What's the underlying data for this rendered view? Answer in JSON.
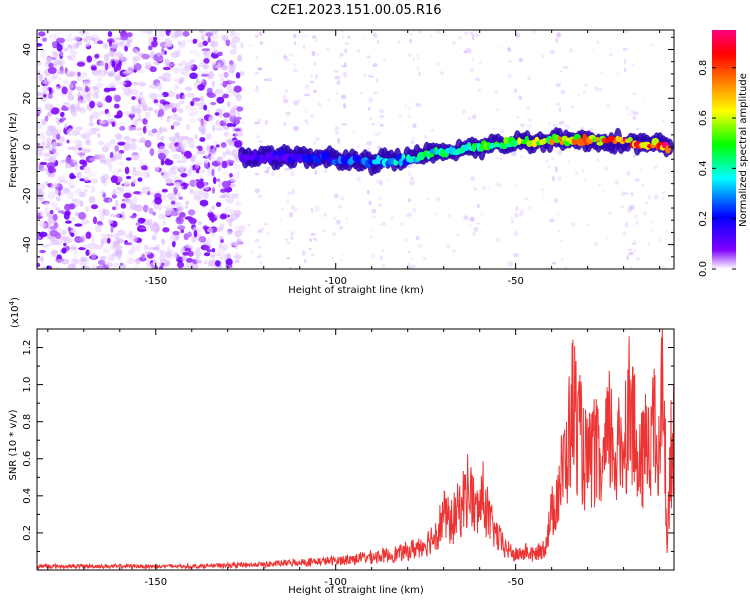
{
  "page_title": "C2E1.2023.151.00.05.R16",
  "colors": {
    "snr_line": "#ee3333",
    "scatter_low": "#dcc8f5",
    "scatter_mid": "#8a2be2",
    "band_core": "#00d0ff",
    "frame": "#000000"
  },
  "chart_data": [
    {
      "type": "heatmap",
      "title": "C2E1.2023.151.00.05.R16",
      "xlabel": "Height of straight line (km)",
      "ylabel": "Frequency (Hz)",
      "xlim": [
        -183,
        -6
      ],
      "ylim": [
        -50,
        48
      ],
      "x_ticks": [
        -150,
        -100,
        -50
      ],
      "x_tick_labels": [
        "-150",
        "-100",
        "-50"
      ],
      "y_ticks": [
        -40,
        -20,
        0,
        20,
        40
      ],
      "y_tick_labels": [
        "-40",
        "-20",
        "0",
        "20",
        "40"
      ],
      "grid": false,
      "colorbar": {
        "label": "Normalized spectral amplitude",
        "range": [
          0,
          0.95
        ],
        "ticks": [
          0.0,
          0.2,
          0.4,
          0.6,
          0.8
        ],
        "tick_labels": [
          "0.0",
          "0.2",
          "0.4",
          "0.6",
          "0.8"
        ],
        "colormap": [
          "#ffffff",
          "#8000ff",
          "#0000ff",
          "#00ffff",
          "#00ff00",
          "#ffff00",
          "#ff8000",
          "#ff0000",
          "#ff0080"
        ]
      },
      "ridge": {
        "x": [
          -126,
          -110,
          -100,
          -90,
          -80,
          -70,
          -60,
          -50,
          -40,
          -30,
          -20,
          -10,
          -7
        ],
        "frequency": [
          -4,
          -4,
          -5,
          -6,
          -5,
          -2,
          0,
          2,
          3,
          3,
          2,
          1,
          -1
        ],
        "amplitude": [
          0.15,
          0.2,
          0.25,
          0.3,
          0.35,
          0.45,
          0.45,
          0.5,
          0.6,
          0.7,
          0.75,
          0.8,
          0.9
        ]
      },
      "broadband_region_x": [
        -183,
        -126
      ]
    },
    {
      "type": "line",
      "xlabel": "Height of straight line (km)",
      "ylabel": "SNR (10 * v/v)",
      "y_scale_label": "(x10",
      "y_scale_exp": "4",
      "xlim": [
        -183,
        -6
      ],
      "ylim": [
        0,
        1.3
      ],
      "x_ticks": [
        -150,
        -100,
        -50
      ],
      "x_tick_labels": [
        "-150",
        "-100",
        "-50"
      ],
      "y_ticks": [
        0.2,
        0.4,
        0.6,
        0.8,
        1.0,
        1.2
      ],
      "y_tick_labels": [
        "0.2",
        "0.4",
        "0.6",
        "0.8",
        "1.0",
        "1.2"
      ],
      "grid": false,
      "series": [
        {
          "x": [
            -183,
            -160,
            -140,
            -120,
            -110,
            -100,
            -95,
            -90,
            -85,
            -80,
            -75,
            -72,
            -70,
            -68,
            -65,
            -63,
            -61,
            -59,
            -57,
            -55,
            -53,
            -50,
            -47,
            -45,
            -42,
            -40,
            -38,
            -36,
            -34,
            -32,
            -30,
            -28,
            -26,
            -24,
            -22,
            -20,
            -18,
            -16,
            -14,
            -12,
            -10,
            -9,
            -8,
            -7,
            -6
          ],
          "values": [
            0.02,
            0.02,
            0.02,
            0.03,
            0.04,
            0.05,
            0.06,
            0.07,
            0.08,
            0.1,
            0.14,
            0.2,
            0.3,
            0.25,
            0.35,
            0.45,
            0.3,
            0.4,
            0.25,
            0.18,
            0.12,
            0.08,
            0.1,
            0.08,
            0.12,
            0.3,
            0.45,
            0.6,
            0.9,
            0.7,
            0.55,
            0.65,
            0.5,
            0.75,
            0.6,
            0.7,
            0.95,
            0.5,
            0.65,
            0.8,
            0.55,
            1.25,
            0.1,
            0.6,
            0.7
          ]
        }
      ]
    }
  ]
}
